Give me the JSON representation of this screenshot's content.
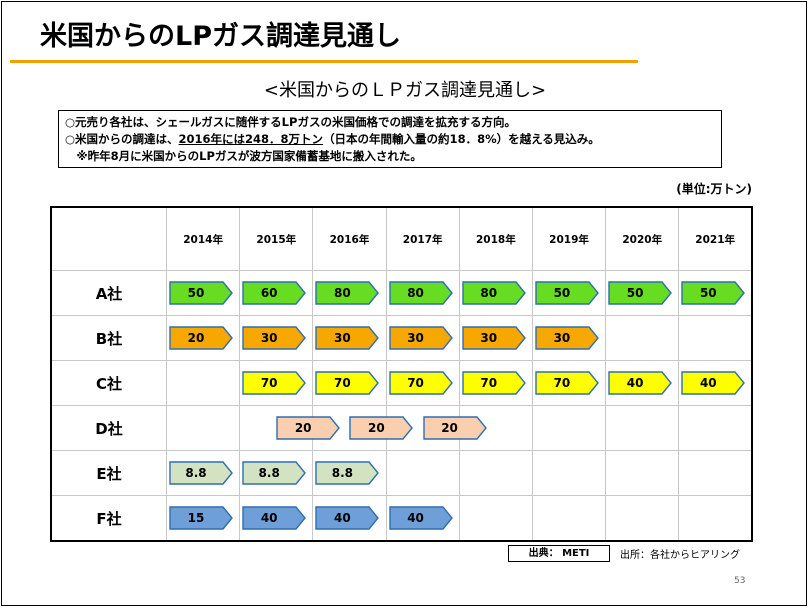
{
  "slide": {
    "title": "米国からのLPガス調達見通し",
    "subtitle": "<米国からのＬＰガス調達見通し>",
    "notes": {
      "line1": "○元売り各社は、シェールガスに随伴するLPガスの米国価格での調達を拡充する方向。",
      "line2_a": "○米国からの調達は、",
      "line2_b": "2016年には248．8万トン",
      "line2_c": "（日本の年間輸入量の約18．8%）を越える見込み。",
      "line3": "　※昨年8月に米国からのLPガスが波方国家備蓄基地に搬入された。"
    },
    "unit": "(単位:万トン)",
    "source_box": "出典： METI",
    "source_note": "出所：各社からヒアリング",
    "page_number": "53"
  },
  "colors": {
    "A": "#66dd22",
    "B": "#f7a800",
    "C": "#ffff00",
    "D": "#f9cfb0",
    "E": "#d3e3c2",
    "F": "#6f9fd8",
    "outline": "#2e6fb0"
  },
  "table": {
    "years": [
      "2014年",
      "2015年",
      "2016年",
      "2017年",
      "2018年",
      "2019年",
      "2020年",
      "2021年"
    ],
    "rows": [
      {
        "company": "A社",
        "key": "A",
        "values": [
          "50",
          "60",
          "80",
          "80",
          "80",
          "50",
          "50",
          "50"
        ]
      },
      {
        "company": "B社",
        "key": "B",
        "values": [
          "20",
          "30",
          "30",
          "30",
          "30",
          "30",
          "",
          ""
        ]
      },
      {
        "company": "C社",
        "key": "C",
        "values": [
          "",
          "70",
          "70",
          "70",
          "70",
          "70",
          "40",
          "40"
        ]
      },
      {
        "company": "D社",
        "key": "D",
        "values": [
          "20",
          "20",
          "20"
        ],
        "offset_half": true
      },
      {
        "company": "E社",
        "key": "E",
        "values": [
          "8.8",
          "8.8",
          "8.8",
          "",
          "",
          "",
          "",
          ""
        ]
      },
      {
        "company": "F社",
        "key": "F",
        "values": [
          "15",
          "40",
          "40",
          "40",
          "",
          "",
          "",
          ""
        ]
      }
    ]
  }
}
